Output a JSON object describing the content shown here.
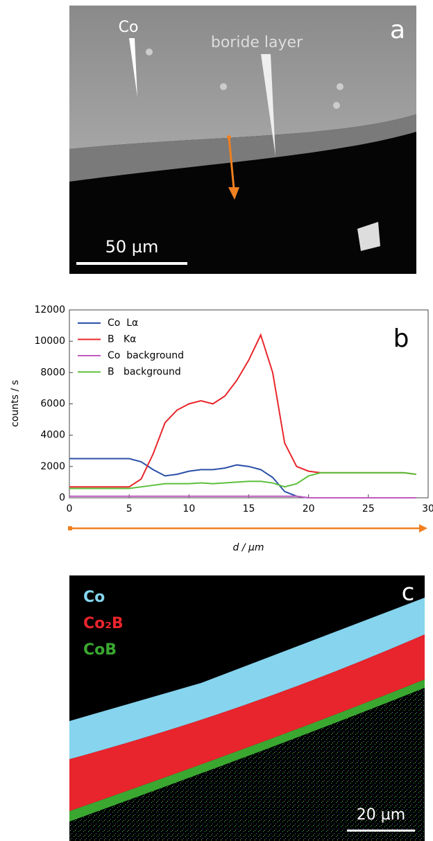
{
  "panel_a": {
    "label": "a",
    "annotations": [
      "Co",
      "boride layer"
    ],
    "scale_bar": "50 µm"
  },
  "chart_data": {
    "type": "line",
    "panel_label": "b",
    "y_label": "counts / s",
    "x_label": "d / µm",
    "x": [
      0,
      1,
      2,
      3,
      4,
      5,
      6,
      7,
      8,
      9,
      10,
      11,
      12,
      13,
      14,
      15,
      16,
      17,
      18,
      19,
      20,
      21,
      22,
      23,
      24,
      25,
      26,
      27,
      28,
      29
    ],
    "xlim": [
      0,
      30
    ],
    "xticks": [
      0,
      5,
      10,
      15,
      20,
      25,
      30
    ],
    "ylim": [
      0,
      12000
    ],
    "yticks": [
      0,
      2000,
      4000,
      6000,
      8000,
      10000,
      12000
    ],
    "legend": "upper left",
    "series": [
      {
        "name": "Co  Lα",
        "color": "#2a4fa8",
        "values": [
          2500,
          2500,
          2500,
          2500,
          2500,
          2500,
          2300,
          1800,
          1400,
          1500,
          1700,
          1800,
          1800,
          1900,
          2100,
          2000,
          1800,
          1300,
          400,
          100,
          0,
          0,
          0,
          0,
          0,
          0,
          0,
          0,
          0,
          0
        ]
      },
      {
        "name": "B   Kα",
        "color": "#e8262b",
        "values": [
          700,
          700,
          700,
          700,
          700,
          700,
          1200,
          2800,
          4800,
          5600,
          6000,
          6200,
          6000,
          6500,
          7500,
          8800,
          10400,
          8000,
          3500,
          2000,
          1700,
          1600,
          1600,
          1600,
          1600,
          1600,
          1600,
          1600,
          1600,
          1500
        ]
      },
      {
        "name": "Co  background",
        "color": "#c05ac0",
        "values": [
          100,
          100,
          100,
          100,
          100,
          100,
          100,
          100,
          100,
          100,
          100,
          100,
          100,
          100,
          100,
          100,
          100,
          100,
          100,
          100,
          0,
          0,
          0,
          0,
          0,
          0,
          0,
          0,
          0,
          0
        ]
      },
      {
        "name": "B   background",
        "color": "#5cbf3a",
        "values": [
          600,
          600,
          600,
          600,
          600,
          600,
          700,
          800,
          900,
          900,
          900,
          950,
          900,
          950,
          1000,
          1050,
          1050,
          950,
          700,
          900,
          1400,
          1600,
          1600,
          1600,
          1600,
          1600,
          1600,
          1600,
          1600,
          1500
        ]
      }
    ]
  },
  "panel_c": {
    "label": "c",
    "legend": [
      "Co",
      "Co₂B",
      "CoB"
    ],
    "scale_bar": "20 µm"
  }
}
